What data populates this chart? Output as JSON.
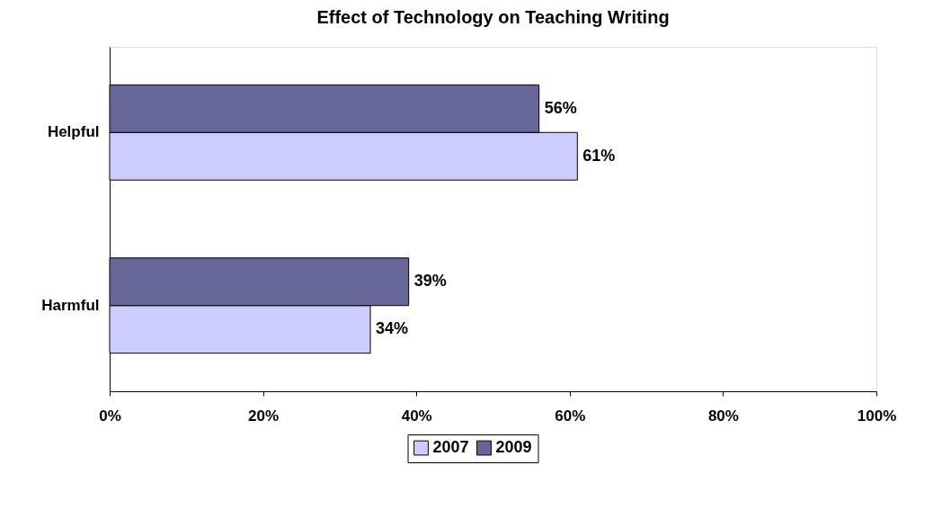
{
  "chart_data": {
    "type": "bar",
    "orientation": "horizontal",
    "title": "Effect of Technology on Teaching Writing",
    "categories": [
      "Helpful",
      "Harmful"
    ],
    "series": [
      {
        "name": "2007",
        "color": "#ccccff",
        "values": [
          61,
          34
        ],
        "value_labels": [
          "61%",
          "34%"
        ]
      },
      {
        "name": "2009",
        "color": "#666699",
        "values": [
          56,
          39
        ],
        "value_labels": [
          "56%",
          "39%"
        ]
      }
    ],
    "xlim": [
      0,
      100
    ],
    "xticks": [
      {
        "value": 0,
        "label": "0%"
      },
      {
        "value": 20,
        "label": "20%"
      },
      {
        "value": 40,
        "label": "40%"
      },
      {
        "value": 60,
        "label": "60%"
      },
      {
        "value": 80,
        "label": "80%"
      },
      {
        "value": 100,
        "label": "100%"
      }
    ],
    "grid": false,
    "legend": "bottom"
  }
}
